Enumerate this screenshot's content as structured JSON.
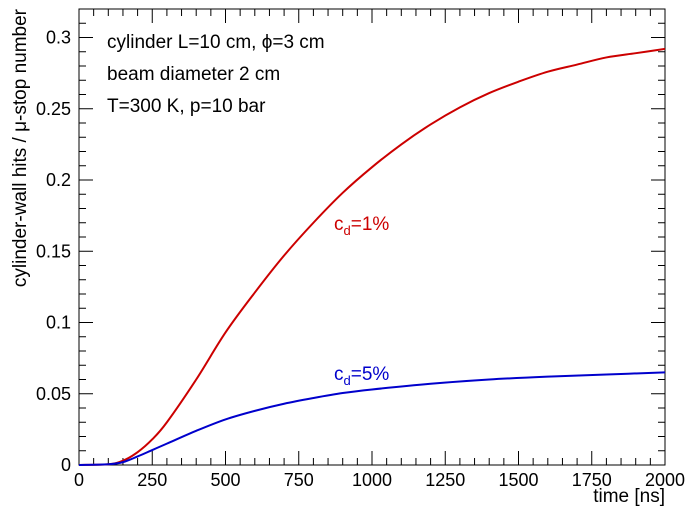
{
  "chart_data": {
    "type": "line",
    "xlabel": "time [ns]",
    "ylabel": "cylinder-wall hits / μ-stop number",
    "xlim": [
      0,
      2000
    ],
    "ylim": [
      0,
      0.32
    ],
    "x_ticks": [
      "0",
      "250",
      "500",
      "750",
      "1000",
      "1250",
      "1500",
      "1750",
      "2000"
    ],
    "y_ticks": [
      "0",
      "0.05",
      "0.1",
      "0.15",
      "0.2",
      "0.25",
      "0.3"
    ],
    "annotations": [
      "cylinder L=10 cm, ϕ=3 cm",
      "beam diameter 2 cm",
      "T=300 K, p=10 bar"
    ],
    "series": [
      {
        "label_base": "c",
        "label_sub": "d",
        "label_rest": "=1%",
        "color": "#cc0000",
        "x": [
          0,
          100,
          150,
          200,
          250,
          300,
          400,
          500,
          600,
          700,
          800,
          900,
          1000,
          1100,
          1200,
          1300,
          1400,
          1500,
          1600,
          1700,
          1800,
          1900,
          2000
        ],
        "y": [
          0,
          0.0005,
          0.003,
          0.009,
          0.018,
          0.03,
          0.06,
          0.093,
          0.121,
          0.147,
          0.17,
          0.191,
          0.209,
          0.225,
          0.239,
          0.251,
          0.261,
          0.269,
          0.276,
          0.281,
          0.286,
          0.289,
          0.292
        ]
      },
      {
        "label_base": "c",
        "label_sub": "d",
        "label_rest": "=5%",
        "color": "#0000cc",
        "x": [
          0,
          100,
          150,
          200,
          250,
          300,
          400,
          500,
          600,
          700,
          800,
          900,
          1000,
          1200,
          1400,
          1600,
          1800,
          2000
        ],
        "y": [
          0,
          0.0005,
          0.002,
          0.006,
          0.0105,
          0.015,
          0.024,
          0.032,
          0.038,
          0.043,
          0.047,
          0.0505,
          0.053,
          0.057,
          0.06,
          0.062,
          0.0635,
          0.065
        ]
      }
    ]
  }
}
